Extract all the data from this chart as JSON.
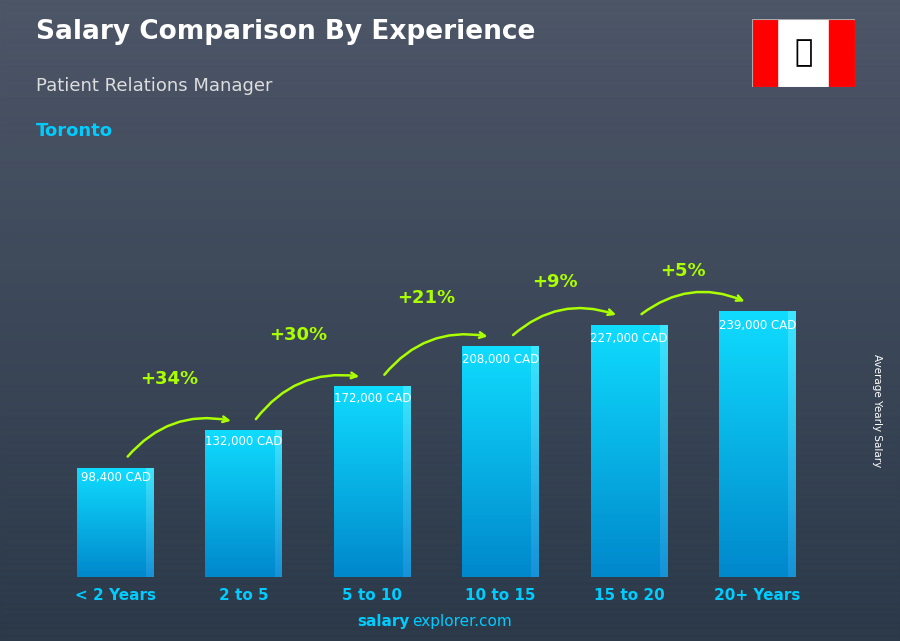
{
  "title": "Salary Comparison By Experience",
  "subtitle": "Patient Relations Manager",
  "city": "Toronto",
  "categories": [
    "< 2 Years",
    "2 to 5",
    "5 to 10",
    "10 to 15",
    "15 to 20",
    "20+ Years"
  ],
  "values": [
    98400,
    132000,
    172000,
    208000,
    227000,
    239000
  ],
  "value_labels": [
    "98,400 CAD",
    "132,000 CAD",
    "172,000 CAD",
    "208,000 CAD",
    "227,000 CAD",
    "239,000 CAD"
  ],
  "pct_changes": [
    "+34%",
    "+30%",
    "+21%",
    "+9%",
    "+5%"
  ],
  "bar_color_bottom": "#0077cc",
  "bar_color_top": "#00ccff",
  "title_color": "#ffffff",
  "subtitle_color": "#dddddd",
  "city_color": "#00ccff",
  "label_color": "#ffffff",
  "pct_color": "#aaff00",
  "arrow_color": "#aaff00",
  "footer_bold_color": "#00ccff",
  "footer_normal_color": "#00ccff",
  "ylabel_text": "Average Yearly Salary",
  "footer_bold": "salary",
  "footer_normal": "explorer.com",
  "background_color": "#3a4a5a",
  "ylim_max": 300000,
  "bar_width": 0.6
}
